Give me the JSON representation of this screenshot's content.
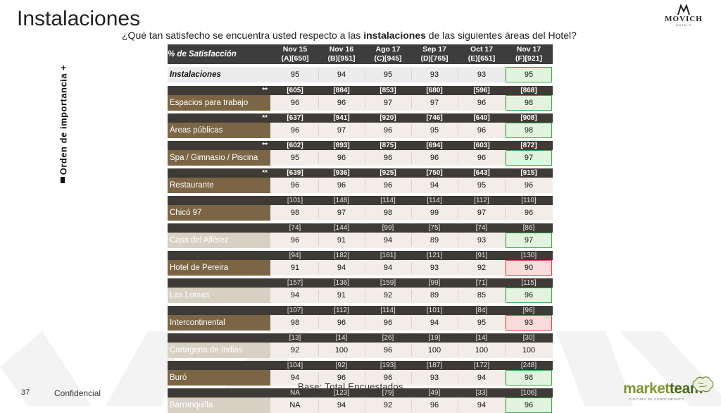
{
  "title": "Instalaciones",
  "logo": {
    "name": "MOVICH",
    "sub": "HOTELS"
  },
  "question": {
    "before": "¿Qué tan satisfecho se encuentra usted respecto a las ",
    "bold": "instalaciones",
    "after": " de las siguientes áreas del Hotel?"
  },
  "axis_label": "Orden de importancia +",
  "table": {
    "header_label": "% de Satisfacción",
    "columns": [
      {
        "period": "Nov 15",
        "base": "(A)[650]"
      },
      {
        "period": "Nov 16",
        "base": "(B)[951]"
      },
      {
        "period": "Ago 17",
        "base": "(C)[945]"
      },
      {
        "period": "Sep 17",
        "base": "(D)[765]"
      },
      {
        "period": "Oct 17",
        "base": "(E)[651]"
      },
      {
        "period": "Nov 17",
        "base": "(F)[921]"
      }
    ],
    "rows": [
      {
        "label": "Instalaciones",
        "values": [
          "95",
          "94",
          "95",
          "93",
          "93",
          "95"
        ]
      },
      {
        "marker": "**",
        "bases": [
          "[605]",
          "[884]",
          "[853]",
          "[680]",
          "[596]",
          "[868]"
        ],
        "label": "Espacios para trabajo",
        "values": [
          "96",
          "96",
          "97",
          "97",
          "96",
          "98"
        ]
      },
      {
        "marker": "**",
        "bases": [
          "[637]",
          "[941]",
          "[920]",
          "[746]",
          "[640]",
          "[908]"
        ],
        "label": "Áreas públicas",
        "values": [
          "96",
          "97",
          "96",
          "95",
          "96",
          "98"
        ]
      },
      {
        "marker": "**",
        "bases": [
          "[602]",
          "[893]",
          "[875]",
          "[694]",
          "[603]",
          "[872]"
        ],
        "label": "Spa / Gimnasio / Piscina",
        "values": [
          "95",
          "96",
          "96",
          "96",
          "96",
          "97"
        ]
      },
      {
        "marker": "**",
        "bases": [
          "[639]",
          "[936]",
          "[925]",
          "[750]",
          "[643]",
          "[915]"
        ],
        "label": "Restaurante",
        "values": [
          "96",
          "96",
          "96",
          "94",
          "95",
          "96"
        ]
      },
      {
        "marker": "",
        "bases": [
          "[101]",
          "[148]",
          "[114]",
          "[114]",
          "[112]",
          "[110]"
        ],
        "label": "Chicó 97",
        "values": [
          "98",
          "97",
          "98",
          "99",
          "97",
          "96"
        ]
      },
      {
        "marker": "",
        "bases": [
          "[74]",
          "[144]",
          "[99]",
          "[75]",
          "[74]",
          "[86]"
        ],
        "label": "Casa del Alférez",
        "values": [
          "96",
          "91",
          "94",
          "89",
          "93",
          "97"
        ]
      },
      {
        "marker": "",
        "bases": [
          "[94]",
          "[182]",
          "[161]",
          "[121]",
          "[91]",
          "[130]"
        ],
        "label": "Hotel de Pereira",
        "values": [
          "91",
          "94",
          "94",
          "93",
          "92",
          "90"
        ]
      },
      {
        "marker": "",
        "bases": [
          "[157]",
          "[136]",
          "[159]",
          "[99]",
          "[71]",
          "[115]"
        ],
        "label": "Las Lomas",
        "values": [
          "94",
          "91",
          "92",
          "89",
          "85",
          "96"
        ]
      },
      {
        "marker": "",
        "bases": [
          "[107]",
          "[112]",
          "[114]",
          "[101]",
          "[84]",
          "[96]"
        ],
        "label": "Intercontinental",
        "values": [
          "98",
          "96",
          "96",
          "94",
          "95",
          "93"
        ]
      },
      {
        "marker": "",
        "bases": [
          "[13]",
          "[14]",
          "[26]",
          "[19]",
          "[14]",
          "[30]"
        ],
        "label": "Cartagena de Indias",
        "values": [
          "92",
          "100",
          "96",
          "100",
          "100",
          "100"
        ]
      },
      {
        "marker": "",
        "bases": [
          "[104]",
          "[92]",
          "[193]",
          "[187]",
          "[172]",
          "[248]"
        ],
        "label": "Buró",
        "values": [
          "94",
          "96",
          "96",
          "93",
          "94",
          "98"
        ]
      },
      {
        "marker": "",
        "bases": [
          "NA",
          "[123]",
          "[79]",
          "[49]",
          "[33]",
          "[106]"
        ],
        "label": "Barranquilla",
        "values": [
          "NA",
          "94",
          "92",
          "96",
          "94",
          "96"
        ]
      }
    ]
  },
  "base_note": "Base: Total Encuestados",
  "footer": {
    "page": "37",
    "confidential": "Confidencial"
  },
  "brand": {
    "name_a": "market",
    "name_b": "team",
    "tagline": "CULTURA DE CONOCIMIENTO"
  },
  "colors": {
    "header": "#3d3d3d",
    "label_dark": "#7b6544",
    "label_light": "#d9d0c4",
    "positive": "#3aa84a",
    "negative": "#d84545"
  }
}
